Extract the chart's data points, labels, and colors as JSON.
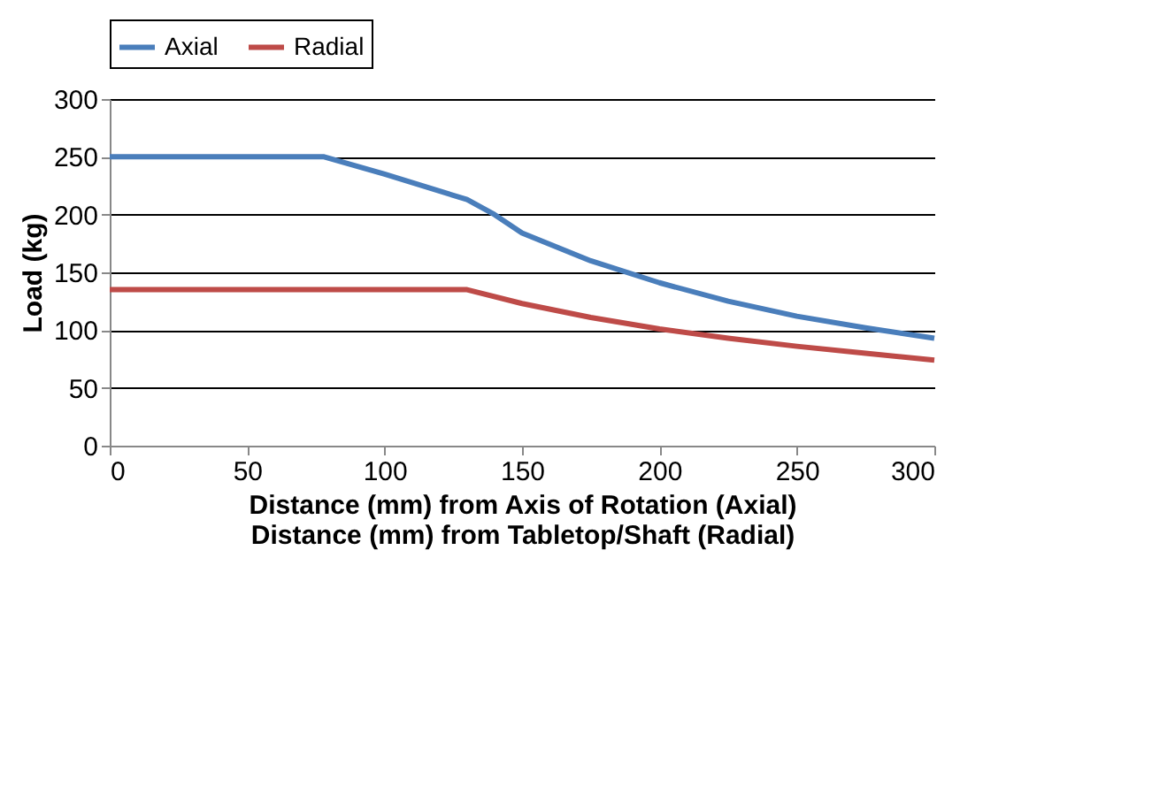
{
  "chart_data": {
    "type": "line",
    "xlabel": "Distance (mm) from Axis of Rotation (Axial)\nDistance (mm) from Tabletop/Shaft (Radial)",
    "ylabel": "Load (kg)",
    "series": [
      {
        "name": "Axial",
        "color": "#4a7ebb",
        "x": [
          0,
          78,
          100,
          130,
          140,
          150,
          175,
          200,
          225,
          250,
          275,
          300
        ],
        "values": [
          250,
          250,
          235,
          213,
          200,
          184,
          160,
          141,
          125,
          112,
          102,
          93
        ]
      },
      {
        "name": "Radial",
        "color": "#be4b48",
        "x": [
          0,
          130,
          150,
          175,
          200,
          225,
          250,
          275,
          300
        ],
        "values": [
          135,
          135,
          123,
          111,
          101,
          93,
          86,
          80,
          74
        ]
      }
    ],
    "xlim": [
      0,
      300
    ],
    "xticks": [
      0,
      50,
      100,
      150,
      200,
      250,
      300
    ],
    "ylim": [
      0,
      300
    ],
    "yticks": [
      0,
      50,
      100,
      150,
      200,
      250,
      300
    ],
    "grid": "y",
    "legend": "top",
    "marker": "none",
    "line_style": "solid"
  }
}
